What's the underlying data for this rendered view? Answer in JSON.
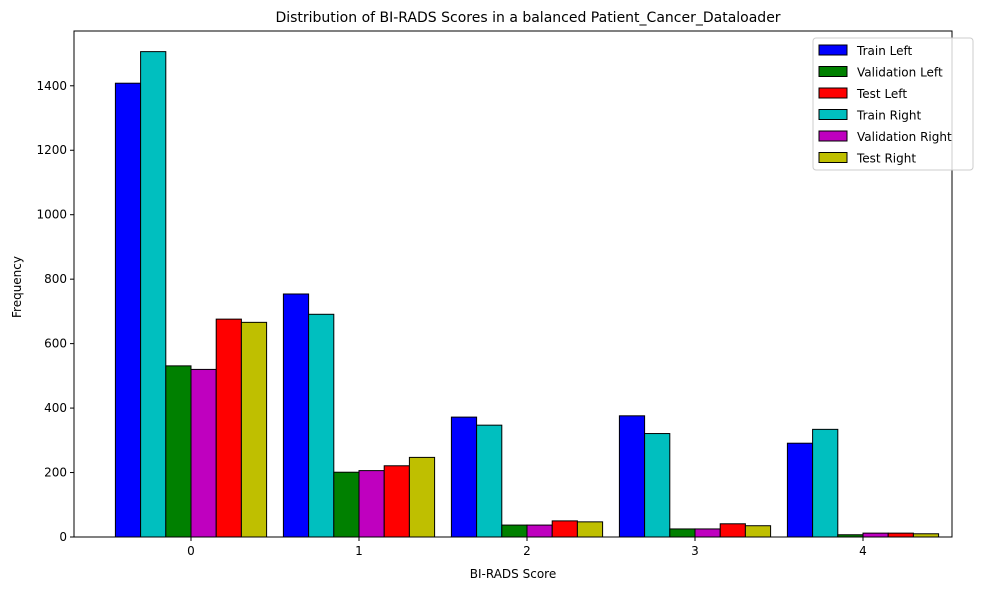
{
  "chart_data": {
    "type": "bar",
    "title": "Distribution of BI-RADS Scores in a balanced Patient_Cancer_Dataloader",
    "xlabel": "BI-RADS Score",
    "ylabel": "Frequency",
    "categories": [
      "0",
      "1",
      "2",
      "3",
      "4"
    ],
    "ylim": [
      0,
      1570
    ],
    "yticks": [
      0,
      200,
      400,
      600,
      800,
      1000,
      1200,
      1400
    ],
    "grid": false,
    "legend_position": "top-right",
    "series": [
      {
        "name": "Train Left",
        "color": "#0000ff",
        "values": [
          1408,
          754,
          372,
          376,
          291
        ]
      },
      {
        "name": "Train Right",
        "color": "#00bfbf",
        "values": [
          1506,
          691,
          347,
          321,
          334
        ]
      },
      {
        "name": "Validation Left",
        "color": "#008000",
        "values": [
          531,
          201,
          37,
          25,
          7
        ]
      },
      {
        "name": "Validation Right",
        "color": "#bf00bf",
        "values": [
          520,
          206,
          37,
          25,
          12
        ]
      },
      {
        "name": "Test Left",
        "color": "#ff0000",
        "values": [
          676,
          221,
          50,
          41,
          12
        ]
      },
      {
        "name": "Test Right",
        "color": "#bfbf00",
        "values": [
          666,
          247,
          47,
          35,
          10
        ]
      }
    ],
    "legend_order": [
      "Train Left",
      "Validation Left",
      "Test Left",
      "Train Right",
      "Validation Right",
      "Test Right"
    ]
  }
}
